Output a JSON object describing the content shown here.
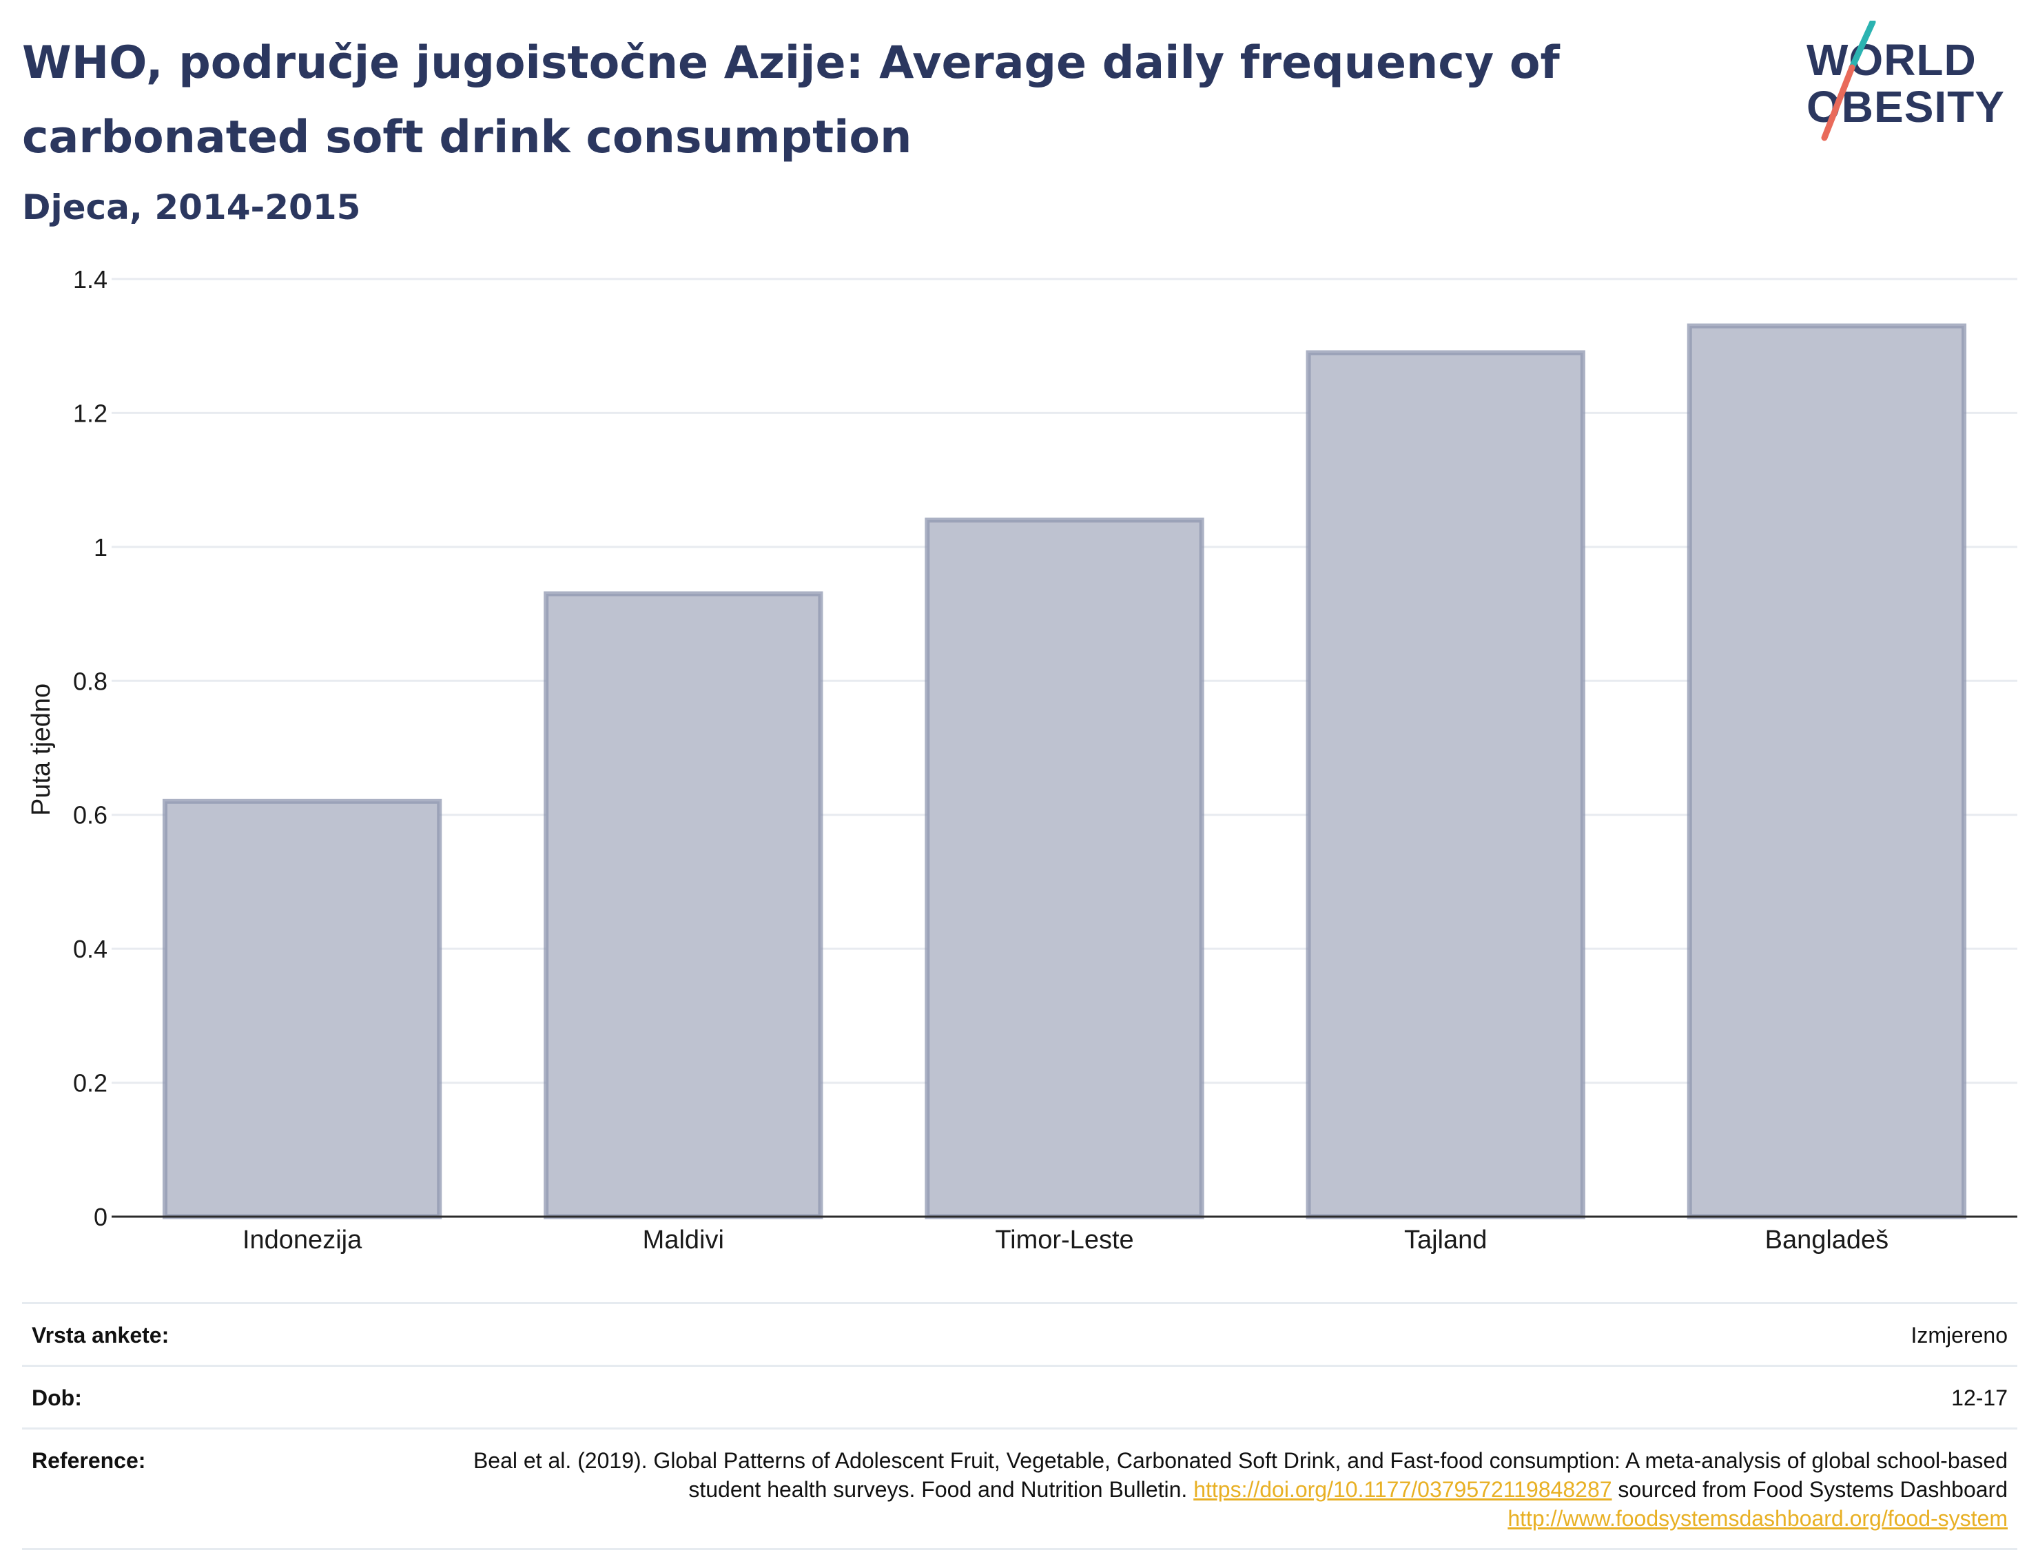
{
  "header": {
    "title": "WHO, područje jugoistočne Azije: Average daily frequency of carbonated soft drink consumption",
    "subtitle": "Djeca, 2014-2015"
  },
  "logo": {
    "line1": "WORLD",
    "line2": "OBESITY",
    "colors": {
      "text": "#2b375f",
      "teal": "#2bb3b1",
      "coral": "#e96a5a"
    }
  },
  "chart_data": {
    "type": "bar",
    "categories": [
      "Indonezija",
      "Maldivi",
      "Timor-Leste",
      "Tajland",
      "Bangladeš"
    ],
    "values": [
      0.62,
      0.93,
      1.04,
      1.29,
      1.33
    ],
    "title": "",
    "xlabel": "",
    "ylabel": "Puta tjedno",
    "ylim": [
      0,
      1.4
    ],
    "yticks": [
      0,
      0.2,
      0.4,
      0.6,
      0.8,
      1,
      1.2,
      1.4
    ],
    "ytick_labels": [
      "0",
      "0.2",
      "0.4",
      "0.6",
      "0.8",
      "1",
      "1.2",
      "1.4"
    ],
    "grid": true,
    "colors": {
      "bar_fill": "#bec2d0",
      "bar_stroke": "#8f97b0",
      "grid": "#e8ebf0",
      "axis": "#2b2b2b"
    }
  },
  "meta": {
    "rows": [
      {
        "label": "Vrsta ankete:",
        "value": "Izmjereno"
      },
      {
        "label": "Dob:",
        "value": "12-17"
      }
    ],
    "reference": {
      "label": "Reference:",
      "text1": "Beal et al. (2019). Global Patterns of Adolescent Fruit, Vegetable, Carbonated Soft Drink, and Fast-food consumption: A meta-analysis of global school-based student health surveys. Food and Nutrition Bulletin. ",
      "link1": "https://doi.org/10.1177/0379572119848287",
      "text2": " sourced from Food Systems Dashboard ",
      "link2": "http://www.foodsystemsdashboard.org/food-system"
    }
  }
}
